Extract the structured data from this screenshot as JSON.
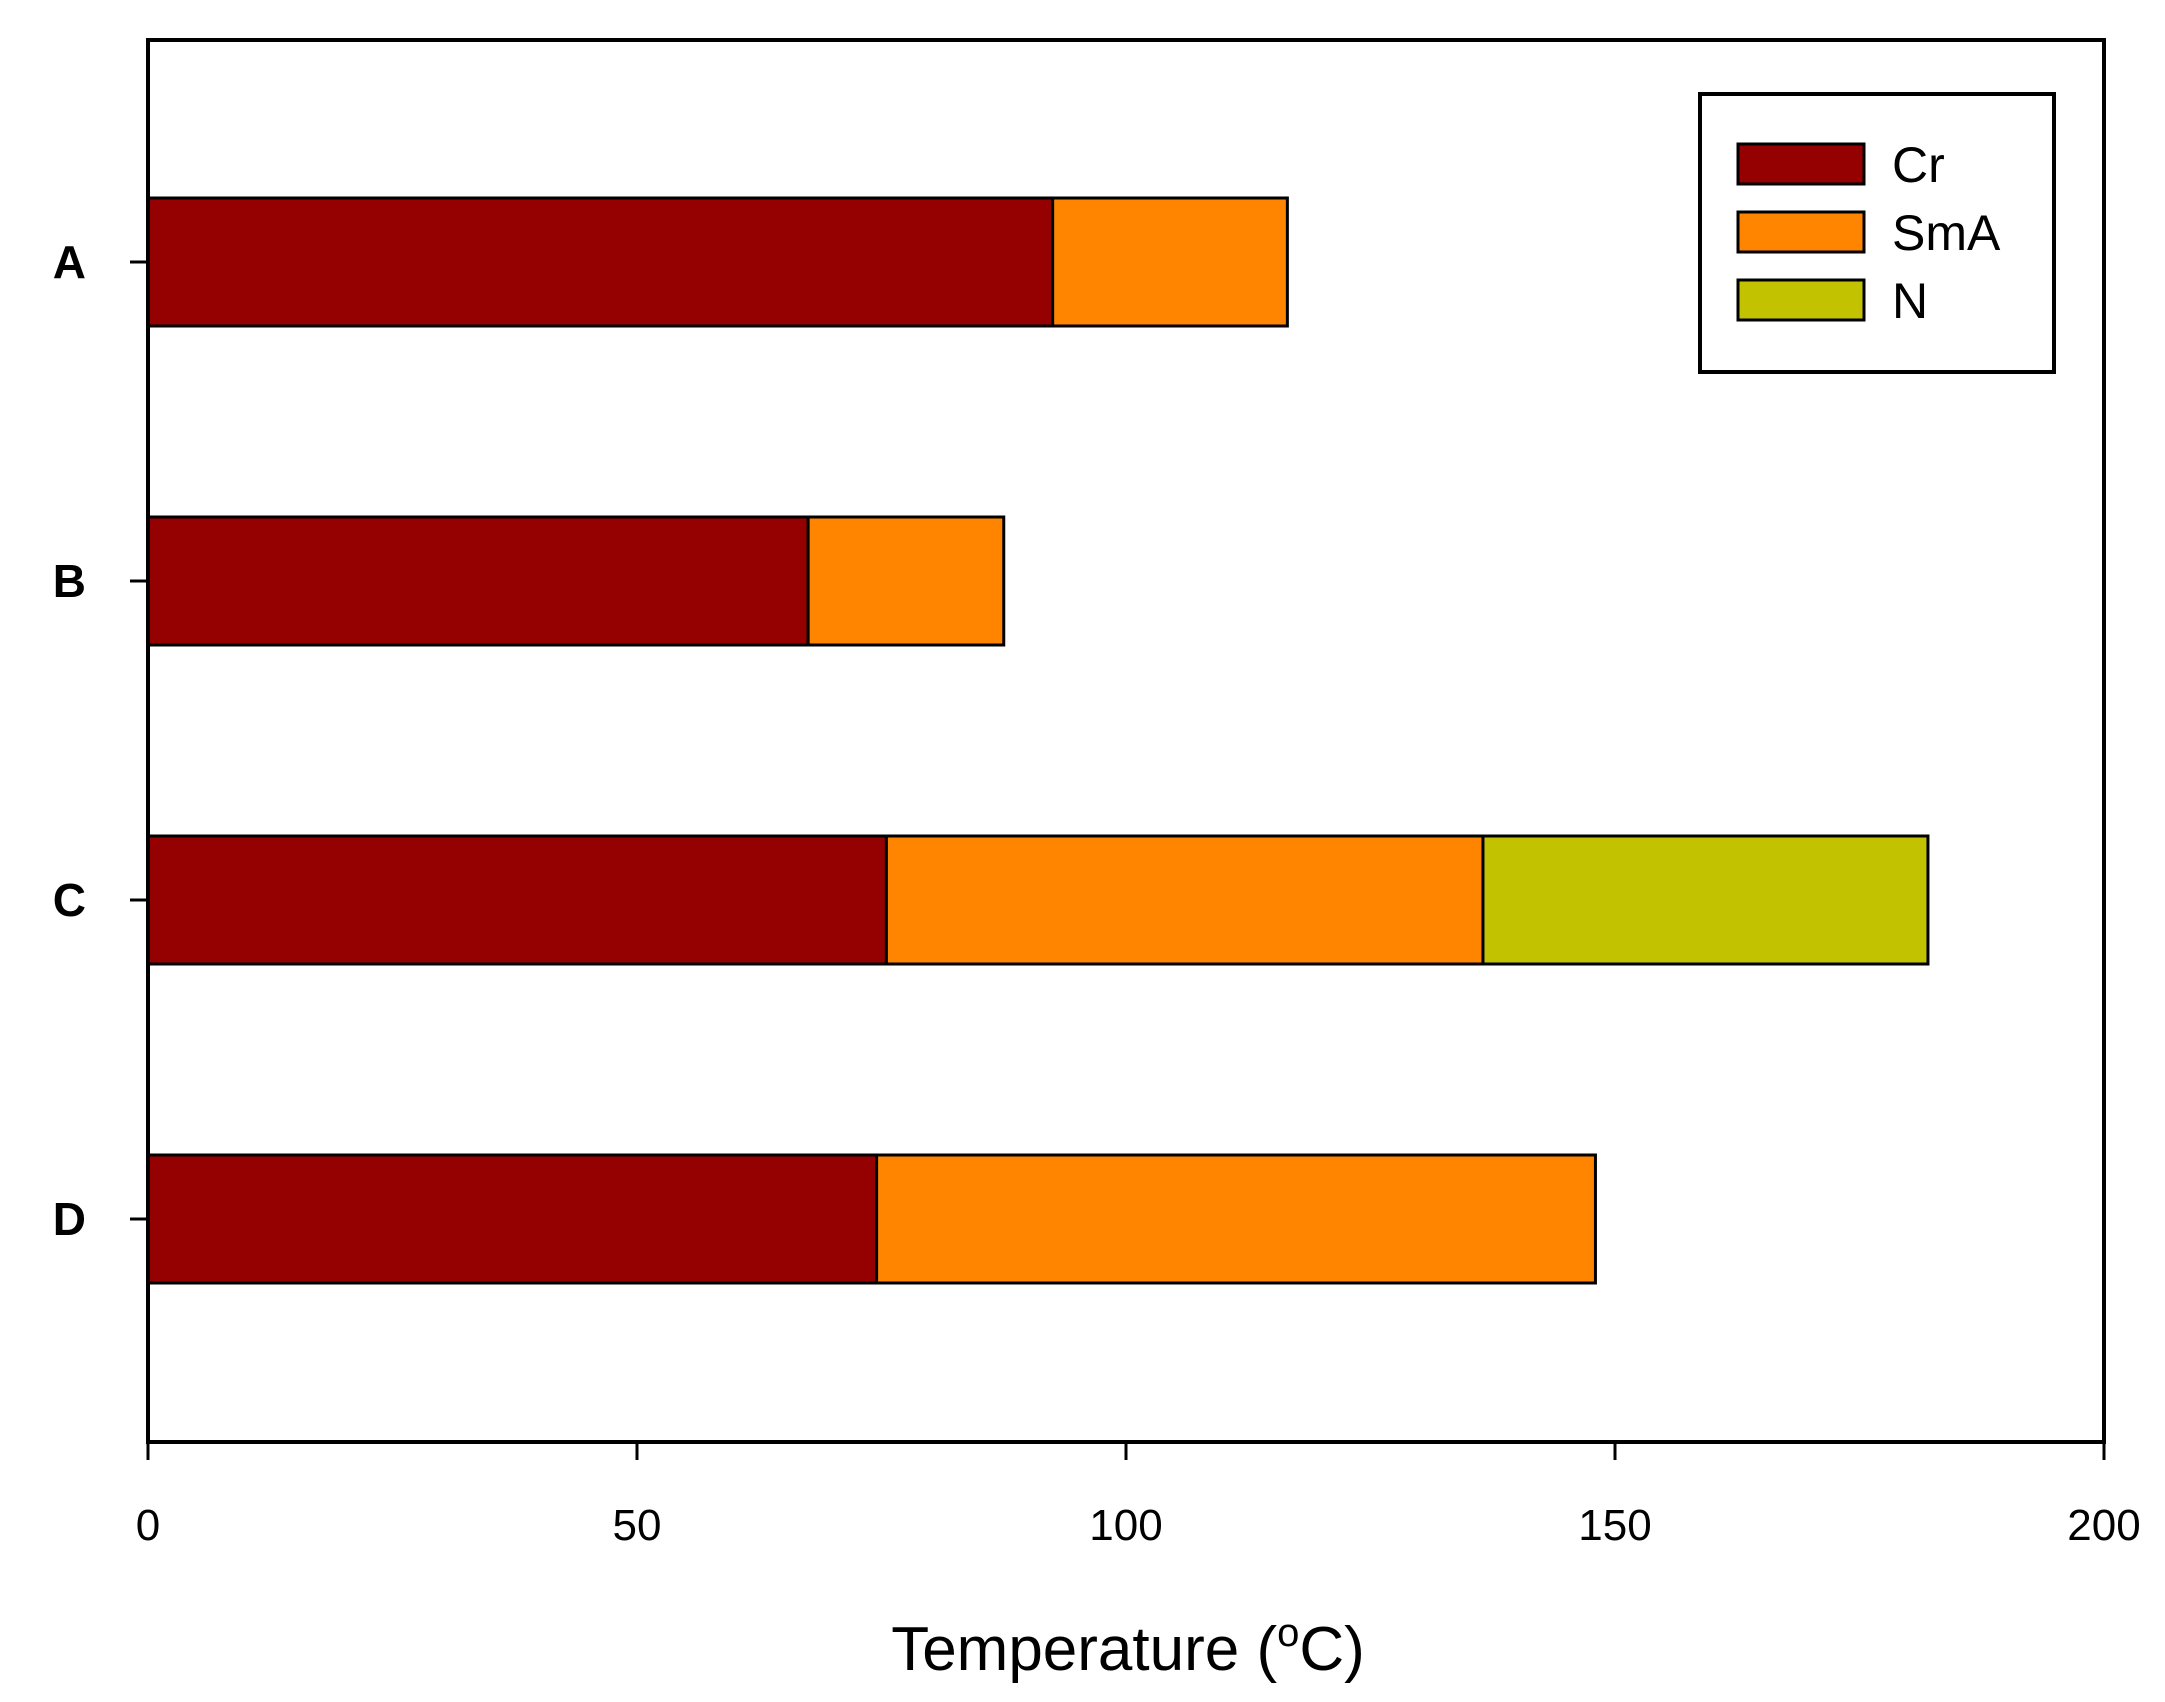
{
  "chart_data": {
    "type": "bar",
    "orientation": "horizontal",
    "stacked": true,
    "categories": [
      "A",
      "B",
      "C",
      "D"
    ],
    "series": [
      {
        "name": "Cr",
        "color": "#950000",
        "values": [
          92.5,
          67.5,
          75.5,
          74.5
        ]
      },
      {
        "name": "SmA",
        "color": "#FF8500",
        "values": [
          24,
          20,
          61,
          73.5
        ]
      },
      {
        "name": "N",
        "color": "#C2C200",
        "values": [
          0,
          0,
          45.5,
          0
        ]
      }
    ],
    "xlabel": "Temperature (",
    "xlabel_superscript": "o",
    "xlabel_suffix": "C)",
    "xlim": [
      0,
      200
    ],
    "xticks": [
      0,
      50,
      100,
      150,
      200
    ],
    "xtick_labels": [
      "0",
      "50",
      "100",
      "150",
      "200"
    ],
    "ylabel": "",
    "title": "",
    "grid": false,
    "legend": "top-right"
  }
}
